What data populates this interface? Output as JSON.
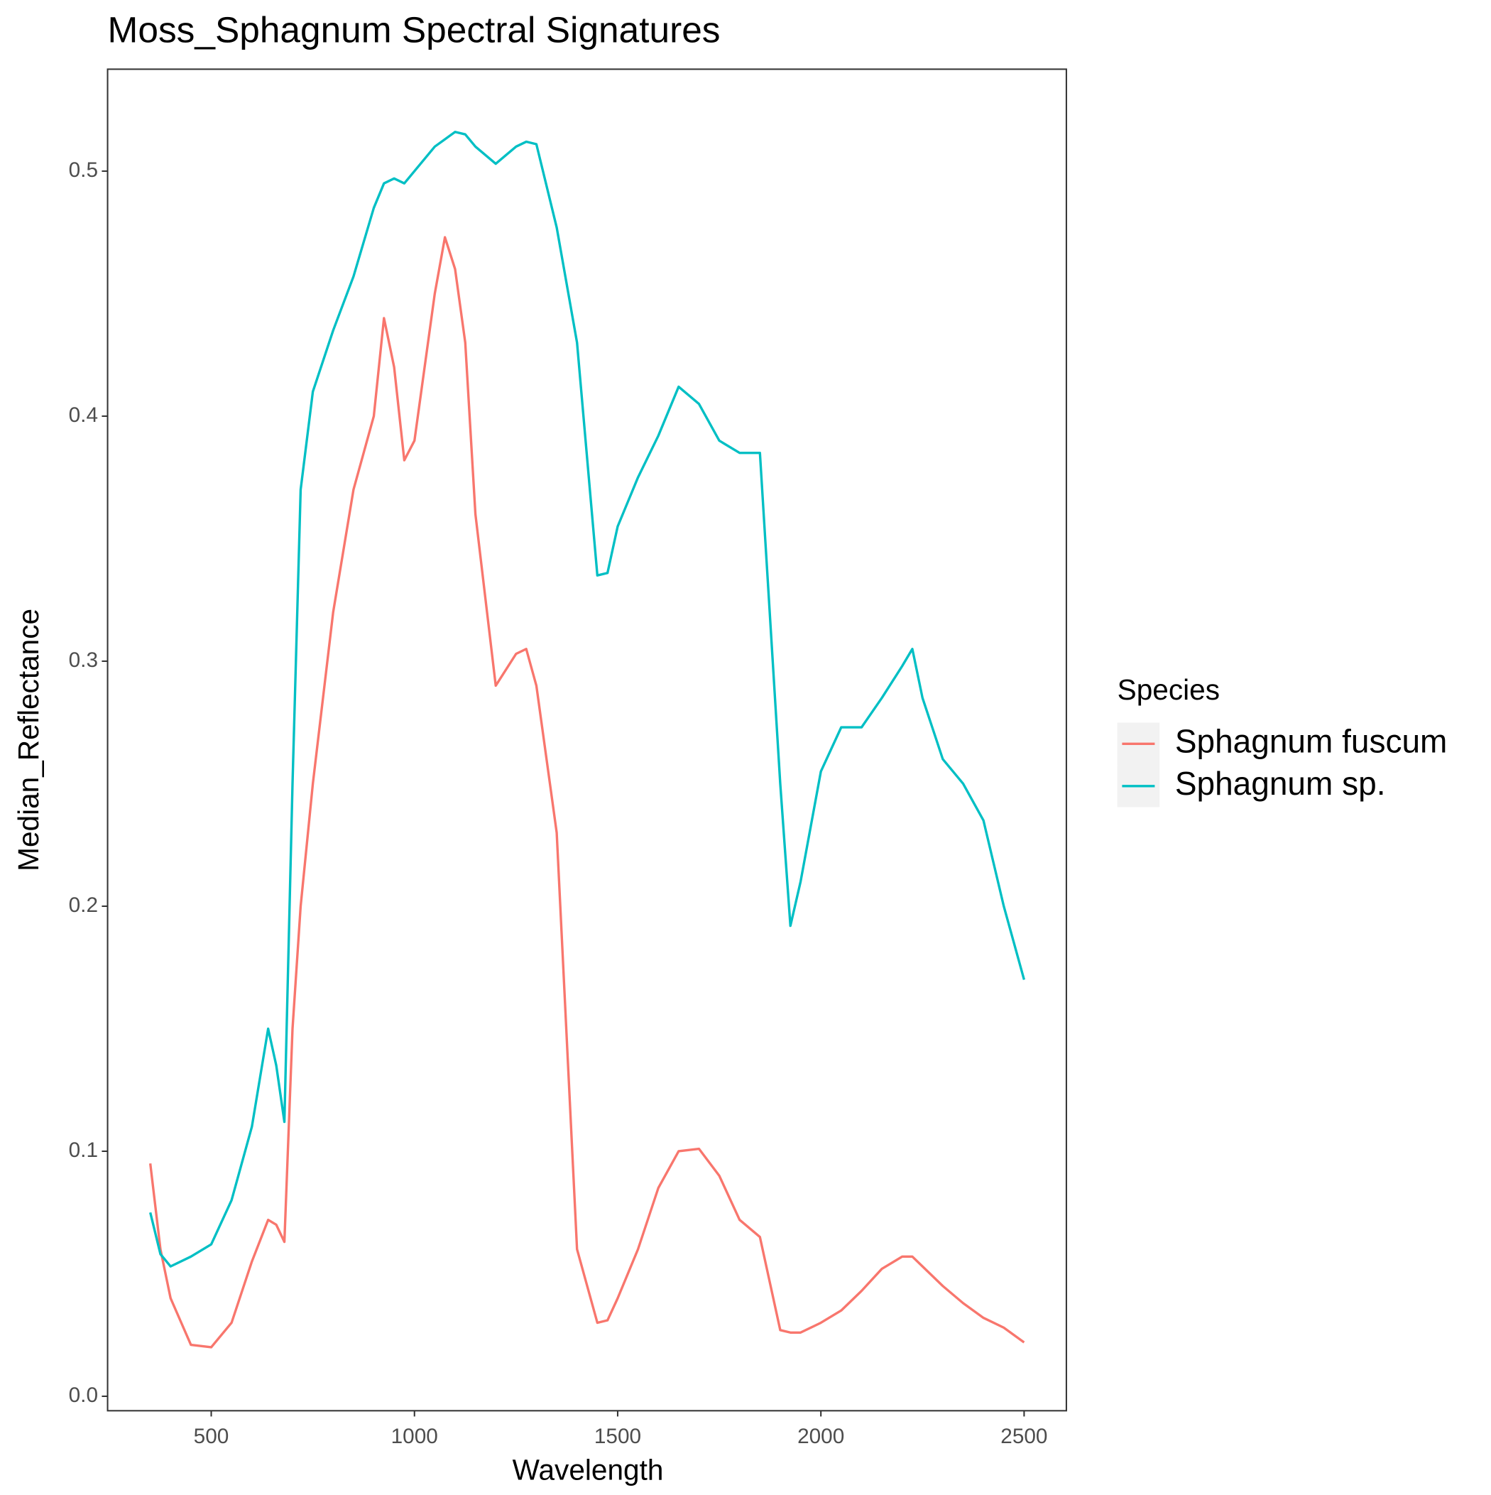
{
  "chart_data": {
    "type": "line",
    "title": "Moss_Sphagnum Spectral Signatures",
    "x_label": "Wavelength",
    "y_label": "Median_Reflectance",
    "legend_title": "Species",
    "legend_position": "right",
    "grid": false,
    "x": [
      350,
      375,
      400,
      450,
      500,
      550,
      600,
      640,
      660,
      680,
      700,
      720,
      750,
      800,
      850,
      900,
      925,
      950,
      975,
      1000,
      1050,
      1075,
      1100,
      1125,
      1150,
      1200,
      1250,
      1275,
      1300,
      1350,
      1400,
      1450,
      1475,
      1500,
      1550,
      1600,
      1650,
      1700,
      1750,
      1800,
      1850,
      1900,
      1925,
      1950,
      2000,
      2050,
      2100,
      2150,
      2200,
      2225,
      2250,
      2300,
      2350,
      2400,
      2450,
      2500
    ],
    "series": [
      {
        "name": "Sphagnum fuscum",
        "color": "#f8766d",
        "values": [
          0.095,
          0.06,
          0.04,
          0.021,
          0.02,
          0.03,
          0.055,
          0.072,
          0.07,
          0.063,
          0.15,
          0.2,
          0.25,
          0.32,
          0.37,
          0.4,
          0.44,
          0.42,
          0.382,
          0.39,
          0.45,
          0.473,
          0.46,
          0.43,
          0.36,
          0.29,
          0.303,
          0.305,
          0.29,
          0.23,
          0.06,
          0.03,
          0.031,
          0.04,
          0.06,
          0.085,
          0.1,
          0.101,
          0.09,
          0.072,
          0.065,
          0.027,
          0.026,
          0.026,
          0.03,
          0.035,
          0.043,
          0.052,
          0.057,
          0.057,
          0.053,
          0.045,
          0.038,
          0.032,
          0.028,
          0.022
        ]
      },
      {
        "name": "Sphagnum sp.",
        "color": "#00bfc4",
        "values": [
          0.075,
          0.058,
          0.053,
          0.057,
          0.062,
          0.08,
          0.11,
          0.15,
          0.135,
          0.112,
          0.25,
          0.37,
          0.41,
          0.435,
          0.457,
          0.485,
          0.495,
          0.497,
          0.495,
          0.5,
          0.51,
          0.513,
          0.516,
          0.515,
          0.51,
          0.503,
          0.51,
          0.512,
          0.511,
          0.477,
          0.43,
          0.335,
          0.336,
          0.355,
          0.375,
          0.392,
          0.412,
          0.405,
          0.39,
          0.385,
          0.385,
          0.25,
          0.192,
          0.21,
          0.255,
          0.273,
          0.273,
          0.285,
          0.298,
          0.305,
          0.285,
          0.26,
          0.25,
          0.235,
          0.2,
          0.17
        ]
      }
    ],
    "xlim": [
      245,
      2604
    ],
    "ylim": [
      -0.0059,
      0.5416
    ],
    "xticks": [
      500,
      1000,
      1500,
      2000,
      2500
    ],
    "yticks": [
      {
        "value": 0,
        "label": "0.0"
      },
      0.1,
      0.2,
      0.3,
      0.4,
      0.5
    ]
  }
}
